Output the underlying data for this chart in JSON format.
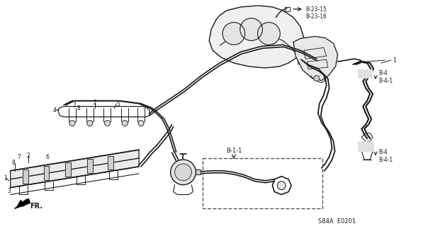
{
  "bg_color": "#ffffff",
  "line_color": "#1a1a1a",
  "text_color": "#1a1a1a",
  "footer_text": "S84A  E0201",
  "label_b23": "B-23-15\nB-23-16",
  "label_b4_top": "B-4\nB-4-1",
  "label_b4_bot": "B-4\nB-4-1",
  "label_b11": "B-1-1",
  "label_fr": "FR.",
  "fig_width": 6.28,
  "fig_height": 3.2,
  "dpi": 100
}
